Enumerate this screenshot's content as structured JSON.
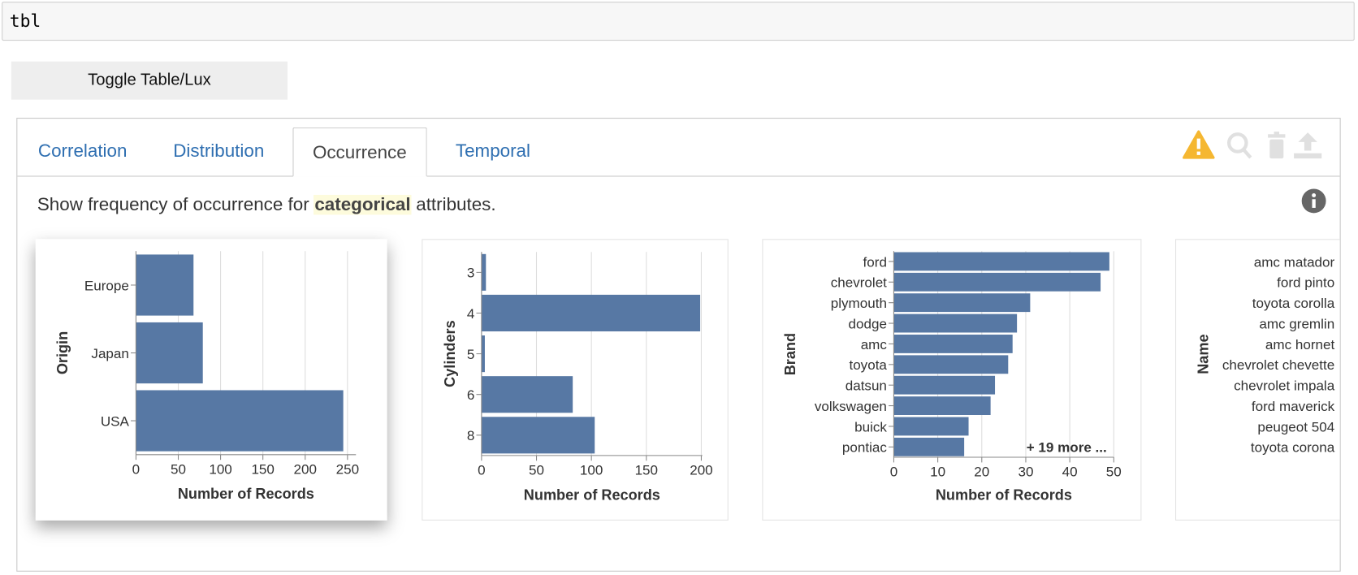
{
  "cell": {
    "input": "tbl"
  },
  "button": {
    "label": "Toggle Table/Lux"
  },
  "tabs": [
    "Correlation",
    "Distribution",
    "Occurrence",
    "Temporal"
  ],
  "active_tab": 2,
  "description": [
    "Show frequency of occurrence for",
    "categorical",
    "attributes."
  ],
  "charts": [
    {
      "type": "bar",
      "orientation": "horizontal",
      "ylabel": "Origin",
      "xlabel": "Number of Records",
      "categories": [
        "Europe",
        "Japan",
        "USA"
      ],
      "values": [
        68,
        79,
        245
      ],
      "color": "#5778a4",
      "xlim": [
        0,
        260
      ],
      "xticks": [
        0,
        50,
        100,
        150,
        200,
        250
      ],
      "grid": true
    },
    {
      "type": "bar",
      "orientation": "horizontal",
      "ylabel": "Cylinders",
      "xlabel": "Number of Records",
      "categories": [
        "3",
        "4",
        "5",
        "6",
        "8"
      ],
      "values": [
        4,
        199,
        3,
        83,
        103
      ],
      "color": "#5778a4",
      "xlim": [
        0,
        201
      ],
      "xticks": [
        0,
        50,
        100,
        150,
        200
      ],
      "grid": true
    },
    {
      "type": "bar",
      "orientation": "horizontal",
      "ylabel": "Brand",
      "xlabel": "Number of Records",
      "categories": [
        "ford",
        "chevrolet",
        "plymouth",
        "dodge",
        "amc",
        "toyota",
        "datsun",
        "volkswagen",
        "buick",
        "pontiac"
      ],
      "values": [
        49,
        47,
        31,
        28,
        27,
        26,
        23,
        22,
        17,
        16
      ],
      "color": "#5778a4",
      "xlim": [
        0,
        50
      ],
      "xticks": [
        0,
        10,
        20,
        30,
        40,
        50
      ],
      "grid": true,
      "annotation": "+ 19 more ..."
    },
    {
      "type": "bar",
      "orientation": "horizontal",
      "ylabel": "Name",
      "categories": [
        "amc matador",
        "ford pinto",
        "toyota corolla",
        "amc gremlin",
        "amc hornet",
        "chevrolet chevette",
        "chevrolet impala",
        "ford maverick",
        "peugeot 504",
        "toyota corona"
      ]
    }
  ]
}
